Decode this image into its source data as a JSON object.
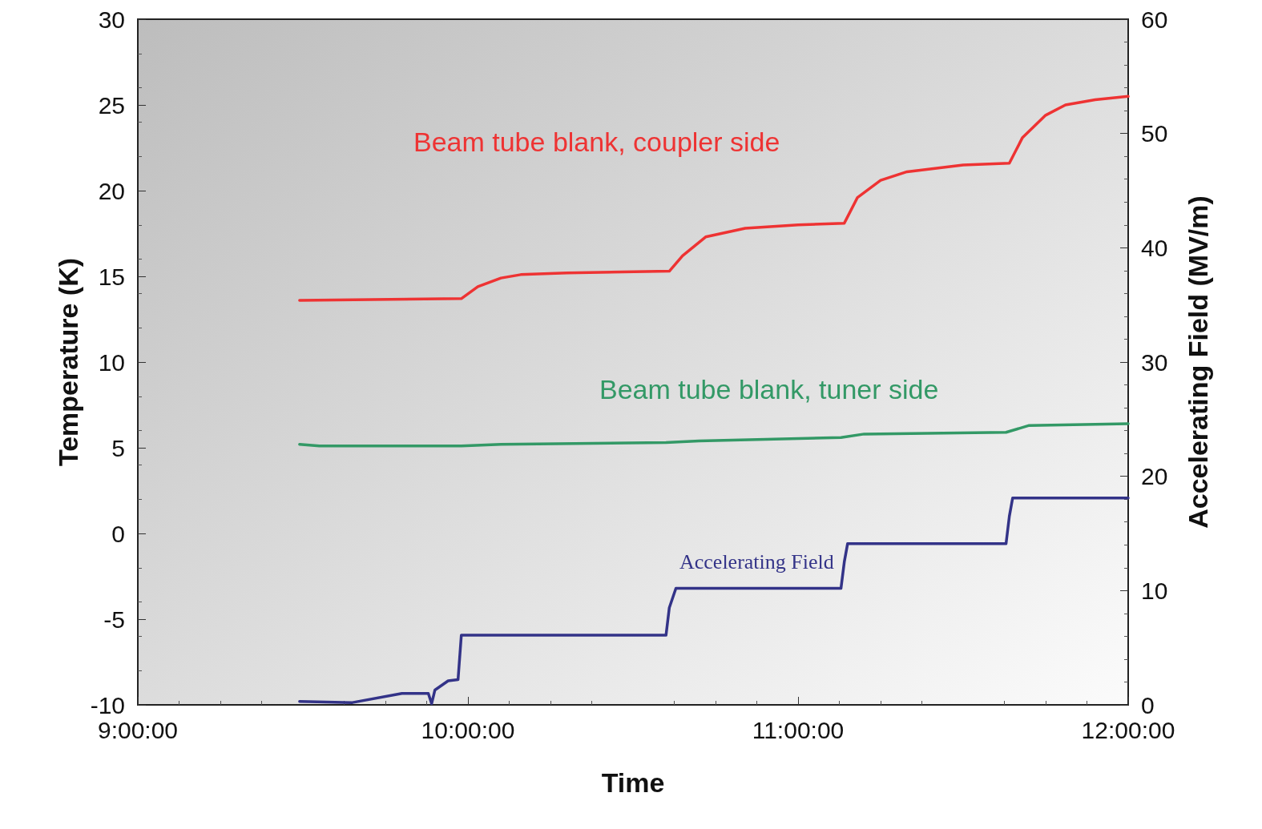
{
  "chart_data": {
    "type": "line",
    "xlabel": "Time",
    "ylabel": "Temperature (K)",
    "y2label": "Accelerating Field (MV/m)",
    "xlim": [
      9,
      12
    ],
    "xticks": [
      {
        "value": 9,
        "label": "9:00:00"
      },
      {
        "value": 10,
        "label": "10:00:00"
      },
      {
        "value": 11,
        "label": "11:00:00"
      },
      {
        "value": 12,
        "label": "12:00:00"
      }
    ],
    "ylim": [
      -10,
      30
    ],
    "yticks": [
      -10,
      -5,
      0,
      5,
      10,
      15,
      20,
      25,
      30
    ],
    "y2lim": [
      0,
      60
    ],
    "y2ticks": [
      0,
      10,
      20,
      30,
      40,
      50,
      60
    ],
    "grid": false,
    "legend": false,
    "marker": "none",
    "line_style": "solid",
    "series": [
      {
        "name": "Beam tube blank, coupler side",
        "color": "#ee3333",
        "x": [
          9.49,
          9.98,
          10.03,
          10.1,
          10.16,
          10.3,
          10.61,
          10.65,
          10.72,
          10.84,
          11.0,
          11.14,
          11.18,
          11.25,
          11.33,
          11.5,
          11.64,
          11.68,
          11.75,
          11.81,
          11.9,
          12.0
        ],
        "values": [
          13.6,
          13.7,
          14.4,
          14.9,
          15.1,
          15.2,
          15.3,
          16.2,
          17.3,
          17.8,
          18.0,
          18.1,
          19.6,
          20.6,
          21.1,
          21.5,
          21.6,
          23.1,
          24.4,
          25.0,
          25.3,
          25.5
        ]
      },
      {
        "name": "Beam tube blank, tuner side",
        "color": "#339966",
        "x": [
          9.49,
          9.55,
          9.98,
          10.1,
          10.6,
          10.7,
          11.13,
          11.2,
          11.63,
          11.7,
          12.0
        ],
        "values": [
          5.2,
          5.1,
          5.1,
          5.2,
          5.3,
          5.4,
          5.6,
          5.8,
          5.9,
          6.3,
          6.4
        ]
      },
      {
        "name": "Accelerating Field",
        "color": "#333388",
        "axis": "y2",
        "x": [
          9.49,
          9.65,
          9.8,
          9.88,
          9.89,
          9.9,
          9.94,
          9.97,
          9.98,
          10.6,
          10.61,
          10.63,
          11.13,
          11.14,
          11.15,
          11.63,
          11.64,
          11.65,
          12.0
        ],
        "values": [
          0.3,
          0.2,
          1.0,
          1.0,
          0.1,
          1.3,
          2.1,
          2.2,
          6.1,
          6.1,
          8.5,
          10.2,
          10.2,
          12.5,
          14.1,
          14.1,
          16.5,
          18.1,
          18.1
        ]
      }
    ]
  }
}
